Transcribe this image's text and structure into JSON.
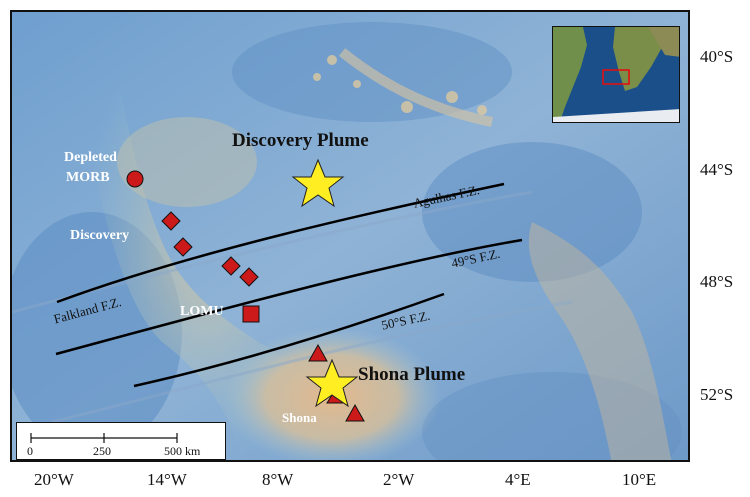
{
  "map": {
    "lat_labels": [
      "40°S",
      "44°S",
      "48°S",
      "52°S"
    ],
    "lon_labels": [
      "20°W",
      "14°W",
      "8°W",
      "2°W",
      "4°E",
      "10°E"
    ],
    "labels": {
      "discovery_plume": "Discovery Plume",
      "shona_plume": "Shona Plume",
      "depleted": "Depleted",
      "morb": "MORB",
      "discovery": "Discovery",
      "lomu": "LOMU",
      "shona": "Shona",
      "agulhas_fz": "Agulhas F.Z.",
      "fz49": "49°S F.Z.",
      "fz50": "50°S F.Z.",
      "falkland_fz": "Falkland F.Z."
    },
    "scale_bar": {
      "ticks": [
        "0",
        "250",
        "500 km"
      ]
    },
    "colors": {
      "marker_red": "#cc1a1a",
      "star_yellow": "#ffee22",
      "ocean_blue": "#7aa6cf",
      "ridge_tan": "#d8b48a"
    },
    "symbols": {
      "depleted_morb": "circle",
      "discovery": "diamond",
      "lomu": "square",
      "shona": "triangle",
      "plumes": "star"
    }
  }
}
